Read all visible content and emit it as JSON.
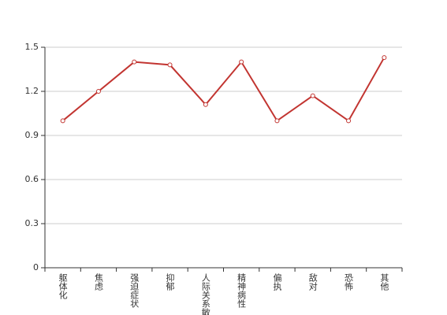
{
  "chart_data": {
    "type": "line",
    "categories": [
      "躯体化",
      "焦虑",
      "强迫症状",
      "抑郁",
      "人际关系敏感",
      "精神病性",
      "偏执",
      "敌对",
      "恐怖",
      "其他"
    ],
    "series": [
      {
        "color": "#c23531",
        "values": [
          1.0,
          1.2,
          1.4,
          1.38,
          1.11,
          1.4,
          1.0,
          1.17,
          1.0,
          1.43
        ]
      }
    ],
    "ylim": [
      0,
      1.5
    ],
    "yticks": [
      0,
      0.3,
      0.6,
      0.9,
      1.2,
      1.5
    ],
    "grid": true
  }
}
